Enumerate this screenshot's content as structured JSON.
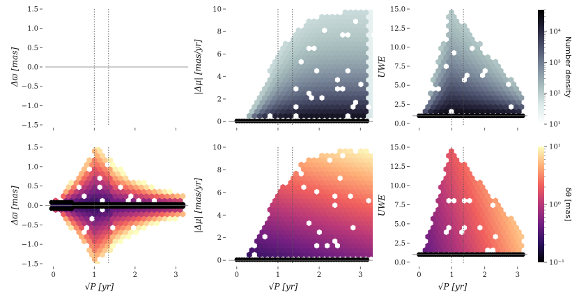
{
  "colors": {
    "bone": [
      "#ffffff",
      "#dcebea",
      "#a7bdbd",
      "#7c8a9c",
      "#4f5570",
      "#24233a",
      "#000000"
    ],
    "magma": [
      "#000004",
      "#2c115f",
      "#721f81",
      "#b73779",
      "#f1605d",
      "#feb078",
      "#fcfdbf"
    ],
    "point": "#000000",
    "refline": "#777777"
  },
  "chart_data": [
    {
      "id": "r0c0",
      "type": "hexbin",
      "row": 0,
      "col": 0,
      "colorbar": "bone",
      "ylabel": "Δϖ [mas]",
      "xlabel": "",
      "xlim": [
        -0.2,
        3.3
      ],
      "ylim": [
        -1.5,
        1.5
      ],
      "xticks": [
        0,
        1,
        2,
        3
      ],
      "xticklabels": [
        "",
        "",
        "",
        ""
      ],
      "yticks": [
        -1.5,
        -1.0,
        -0.5,
        0.0,
        0.5,
        1.0,
        1.5
      ],
      "yticklabels": [
        "−1.5",
        "−1.0",
        "−0.5",
        "0.0",
        "0.5",
        "1.0",
        "1.5"
      ],
      "vlines": [
        1.0,
        1.35
      ],
      "hline": 0.0
    },
    {
      "id": "r0c1",
      "type": "hexbin",
      "row": 0,
      "col": 1,
      "colorbar": "bone",
      "ylabel": "|Δμ| [mas/yr]",
      "xlabel": "",
      "xlim": [
        -0.2,
        3.3
      ],
      "ylim": [
        -0.3,
        10
      ],
      "xticks": [
        0,
        1,
        2,
        3
      ],
      "xticklabels": [
        "",
        "",
        "",
        ""
      ],
      "yticks": [
        0,
        2,
        4,
        6,
        8,
        10
      ],
      "yticklabels": [
        "0",
        "2",
        "4",
        "6",
        "8",
        "10"
      ],
      "vlines": [
        1.0,
        1.35
      ],
      "hline": 0.0
    },
    {
      "id": "r0c2",
      "type": "hexbin",
      "row": 0,
      "col": 2,
      "colorbar": "bone",
      "ylabel": "UWE",
      "xlabel": "",
      "xlim": [
        -0.2,
        3.3
      ],
      "ylim": [
        -0.2,
        15
      ],
      "xticks": [
        0,
        1,
        2,
        3
      ],
      "xticklabels": [
        "",
        "",
        "",
        ""
      ],
      "yticks": [
        0.0,
        2.5,
        5.0,
        7.5,
        10.0,
        12.5,
        15.0
      ],
      "yticklabels": [
        "0.0",
        "2.5",
        "5.0",
        "7.5",
        "10.0",
        "12.5",
        "15.0"
      ],
      "vlines": [
        1.0,
        1.35
      ],
      "hline": 1.0
    },
    {
      "id": "r1c0",
      "type": "hexbin",
      "row": 1,
      "col": 0,
      "colorbar": "magma",
      "ylabel": "Δϖ [mas]",
      "xlabel": "√P [yr]",
      "xlim": [
        -0.2,
        3.3
      ],
      "ylim": [
        -1.5,
        1.5
      ],
      "xticks": [
        0,
        1,
        2,
        3
      ],
      "xticklabels": [
        "0",
        "1",
        "2",
        "3"
      ],
      "yticks": [
        -1.5,
        -1.0,
        -0.5,
        0.0,
        0.5,
        1.0,
        1.5
      ],
      "yticklabels": [
        "−1.5",
        "−1.0",
        "−0.5",
        "0.0",
        "0.5",
        "1.0",
        "1.5"
      ],
      "vlines": [
        1.0,
        1.35
      ],
      "hline": 0.0
    },
    {
      "id": "r1c1",
      "type": "hexbin",
      "row": 1,
      "col": 1,
      "colorbar": "magma",
      "ylabel": "|Δμ| [mas/yr]",
      "xlabel": "√P [yr]",
      "xlim": [
        -0.2,
        3.3
      ],
      "ylim": [
        -0.3,
        10
      ],
      "xticks": [
        0,
        1,
        2,
        3
      ],
      "xticklabels": [
        "0",
        "1",
        "2",
        "3"
      ],
      "yticks": [
        0,
        2,
        4,
        6,
        8,
        10
      ],
      "yticklabels": [
        "0",
        "2",
        "4",
        "6",
        "8",
        "10"
      ],
      "vlines": [
        1.0,
        1.35
      ],
      "hline": 0.0
    },
    {
      "id": "r1c2",
      "type": "hexbin",
      "row": 1,
      "col": 2,
      "colorbar": "magma",
      "ylabel": "UWE",
      "xlabel": "√P [yr]",
      "xlim": [
        -0.2,
        3.3
      ],
      "ylim": [
        -0.2,
        15
      ],
      "xticks": [
        0,
        1,
        2,
        3
      ],
      "xticklabels": [
        "0",
        "1",
        "2",
        "3"
      ],
      "yticks": [
        0.0,
        2.5,
        5.0,
        7.5,
        10.0,
        12.5,
        15.0
      ],
      "yticklabels": [
        "0.0",
        "2.5",
        "5.0",
        "7.5",
        "10.0",
        "12.5",
        "15.0"
      ],
      "vlines": [
        1.0,
        1.35
      ],
      "hline": 1.0
    }
  ],
  "colorbars": {
    "bone": {
      "label": "Number density",
      "scale": "log",
      "range": [
        10,
        50000
      ],
      "ticks": [
        10,
        100,
        1000,
        10000
      ],
      "ticklabels": [
        "10¹",
        "10²",
        "10³",
        "10⁴"
      ]
    },
    "magma": {
      "label": "δθ [mas]",
      "scale": "log",
      "range": [
        0.1,
        10
      ],
      "ticks": [
        0.1,
        1,
        10
      ],
      "ticklabels": [
        "10⁻¹",
        "10⁰",
        "10¹"
      ]
    }
  }
}
